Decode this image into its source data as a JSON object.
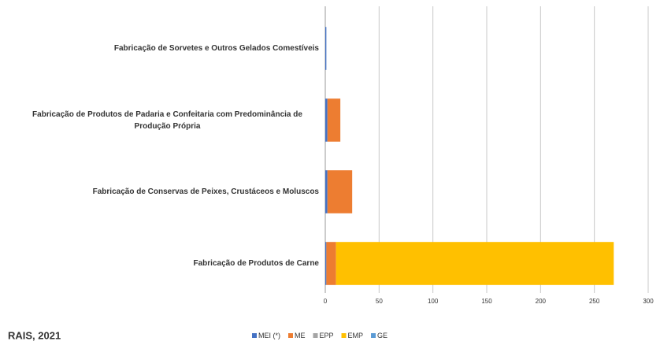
{
  "chart_data": {
    "type": "barh_stacked",
    "categories": [
      "Fabricação de Sorvetes e Outros Gelados Comestíveis",
      "Fabricação de Produtos de Padaria e Confeitaria com Predominância de Produção Própria",
      "Fabricação de Conservas de Peixes, Crustáceos e Moluscos",
      "Fabricação de Produtos de Carne"
    ],
    "series": [
      {
        "name": "MEI (*)",
        "color": "#4472c4",
        "values": [
          1,
          2,
          2,
          1
        ]
      },
      {
        "name": "ME",
        "color": "#ed7d31",
        "values": [
          0,
          12,
          23,
          9
        ]
      },
      {
        "name": "EPP",
        "color": "#a5a5a5",
        "values": [
          0,
          0,
          0,
          0
        ]
      },
      {
        "name": "EMP",
        "color": "#ffc000",
        "values": [
          0,
          0,
          0,
          258
        ]
      },
      {
        "name": "GE",
        "color": "#5b9bd5",
        "values": [
          0,
          0,
          0,
          0
        ]
      }
    ],
    "xlim": [
      0,
      300
    ],
    "xticks": [
      0,
      50,
      100,
      150,
      200,
      250,
      300
    ],
    "grid": true,
    "source": "RAIS, 2021"
  }
}
